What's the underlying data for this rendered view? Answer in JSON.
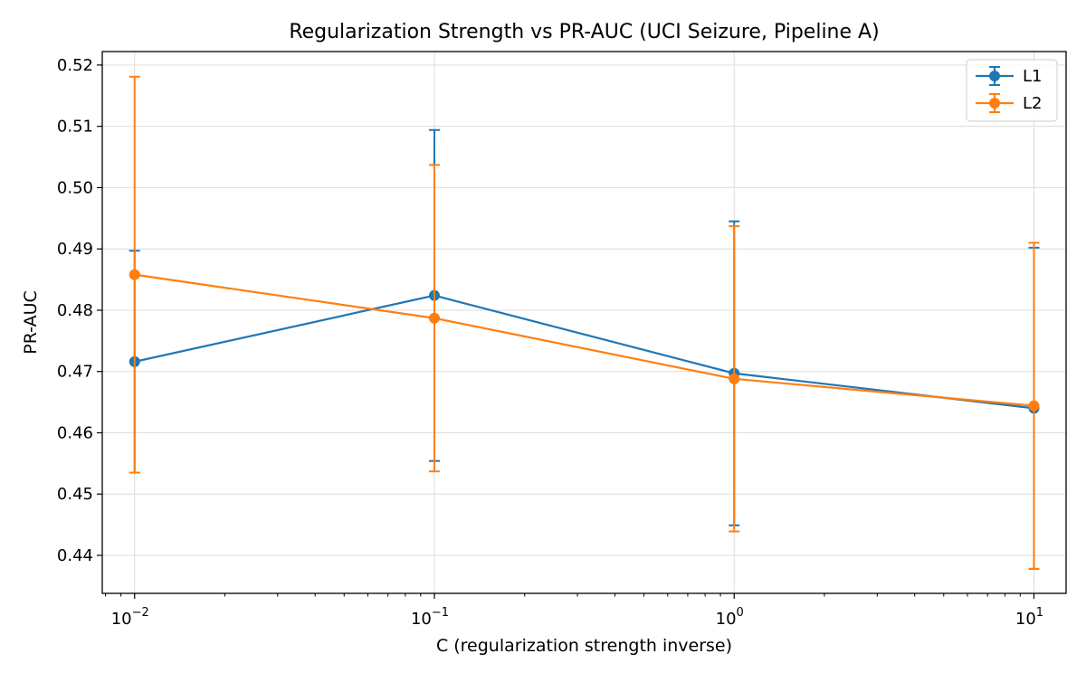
{
  "chart_data": {
    "type": "line",
    "title": "Regularization Strength vs PR-AUC (UCI Seizure, Pipeline A)",
    "xlabel": "C (regularization strength inverse)",
    "ylabel": "PR-AUC",
    "x_scale": "log",
    "x": [
      0.01,
      0.1,
      1,
      10
    ],
    "xlim": [
      0.0078,
      12.8
    ],
    "ylim": [
      0.4338,
      0.5222
    ],
    "x_ticks": [
      {
        "value": 0.01,
        "base": "10",
        "exp": "−2"
      },
      {
        "value": 0.1,
        "base": "10",
        "exp": "−1"
      },
      {
        "value": 1,
        "base": "10",
        "exp": "0"
      },
      {
        "value": 10,
        "base": "10",
        "exp": "1"
      }
    ],
    "y_ticks": [
      {
        "value": 0.44,
        "label": "0.44"
      },
      {
        "value": 0.45,
        "label": "0.45"
      },
      {
        "value": 0.46,
        "label": "0.46"
      },
      {
        "value": 0.47,
        "label": "0.47"
      },
      {
        "value": 0.48,
        "label": "0.48"
      },
      {
        "value": 0.49,
        "label": "0.49"
      },
      {
        "value": 0.5,
        "label": "0.50"
      },
      {
        "value": 0.51,
        "label": "0.51"
      },
      {
        "value": 0.52,
        "label": "0.52"
      }
    ],
    "grid": true,
    "legend_position": "top-right",
    "series": [
      {
        "name": "L1",
        "color": "#1f77b4",
        "values": [
          0.4716,
          0.4824,
          0.4697,
          0.464
        ],
        "error": [
          0.0181,
          0.027,
          0.0248,
          0.0262
        ]
      },
      {
        "name": "L2",
        "color": "#ff7f0e",
        "values": [
          0.4858,
          0.4787,
          0.4688,
          0.4644
        ],
        "error": [
          0.0323,
          0.025,
          0.0249,
          0.0266
        ]
      }
    ]
  }
}
